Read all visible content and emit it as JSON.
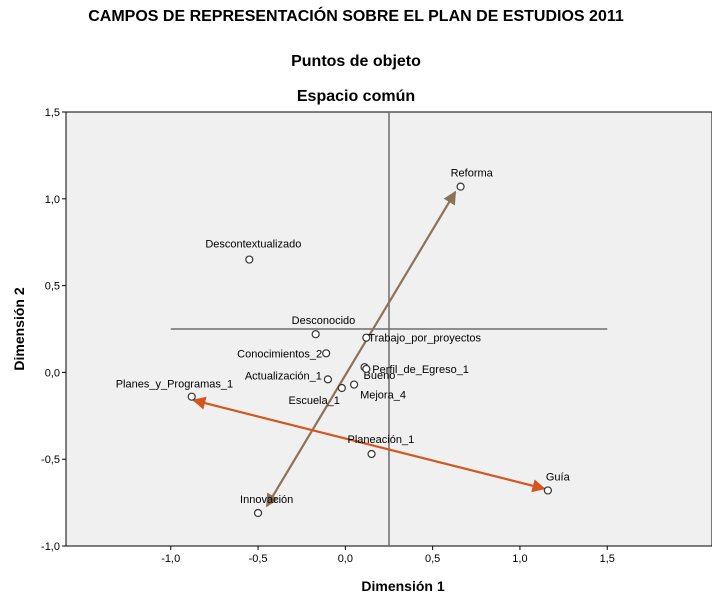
{
  "header": {
    "title": "CAMPOS DE REPRESENTACIÓN SOBRE EL PLAN DE ESTUDIOS 2011",
    "subtitle": "Puntos de objeto",
    "subtitle2": "Espacio común"
  },
  "chart_data": {
    "type": "scatter",
    "title": "Puntos de objeto",
    "subtitle": "Espacio común",
    "xlabel": "Dimensión 1",
    "ylabel": "Dimensión 2",
    "xlim": [
      -1.6,
      2.1
    ],
    "ylim": [
      -1.0,
      1.5
    ],
    "xticks": [
      -1.0,
      -0.5,
      0.0,
      0.5,
      1.0,
      1.5
    ],
    "yticks": [
      -1.0,
      -0.5,
      0.0,
      0.5,
      1.0,
      1.5
    ],
    "xtick_labels": [
      "-1,0",
      "-0,5",
      "0,0",
      "0,5",
      "1,0",
      "1,5"
    ],
    "ytick_labels": [
      "-1,0",
      "-0,5",
      "0,0",
      "0,5",
      "1,0",
      "1,5"
    ],
    "grid": false,
    "plot_background": "#f0f0f0",
    "points": [
      {
        "label": "Reforma",
        "x": 0.66,
        "y": 1.07
      },
      {
        "label": "Descontextualizado",
        "x": -0.55,
        "y": 0.65
      },
      {
        "label": "Desconocido",
        "x": -0.17,
        "y": 0.22
      },
      {
        "label": "Trabajo_por_proyectos",
        "x": 0.12,
        "y": 0.2
      },
      {
        "label": "Conocimientos_2",
        "x": -0.11,
        "y": 0.11
      },
      {
        "label": "Bueno",
        "x": 0.11,
        "y": 0.03
      },
      {
        "label": "Perfil_de_Egreso_1",
        "x": 0.12,
        "y": 0.02
      },
      {
        "label": "Actualización_1",
        "x": -0.1,
        "y": -0.04
      },
      {
        "label": "Mejora_4",
        "x": 0.05,
        "y": -0.07
      },
      {
        "label": "Escuela_1",
        "x": -0.02,
        "y": -0.09
      },
      {
        "label": "Planes_y_Programas_1",
        "x": -0.88,
        "y": -0.14
      },
      {
        "label": "Planeación_1",
        "x": 0.15,
        "y": -0.47
      },
      {
        "label": "Guía",
        "x": 1.16,
        "y": -0.68
      },
      {
        "label": "Innovación",
        "x": -0.5,
        "y": -0.81
      }
    ],
    "reference_lines": {
      "vertical_x": 0.25,
      "horizontal_y": 0.25,
      "horizontal_x_range": [
        -1.0,
        1.5
      ]
    },
    "vectors": [
      {
        "from": [
          -0.45,
          -0.77
        ],
        "to": [
          0.63,
          1.04
        ],
        "color": "#8c7358"
      },
      {
        "from": [
          1.14,
          -0.67
        ],
        "to": [
          -0.87,
          -0.16
        ],
        "color": "#d4551e"
      }
    ]
  }
}
